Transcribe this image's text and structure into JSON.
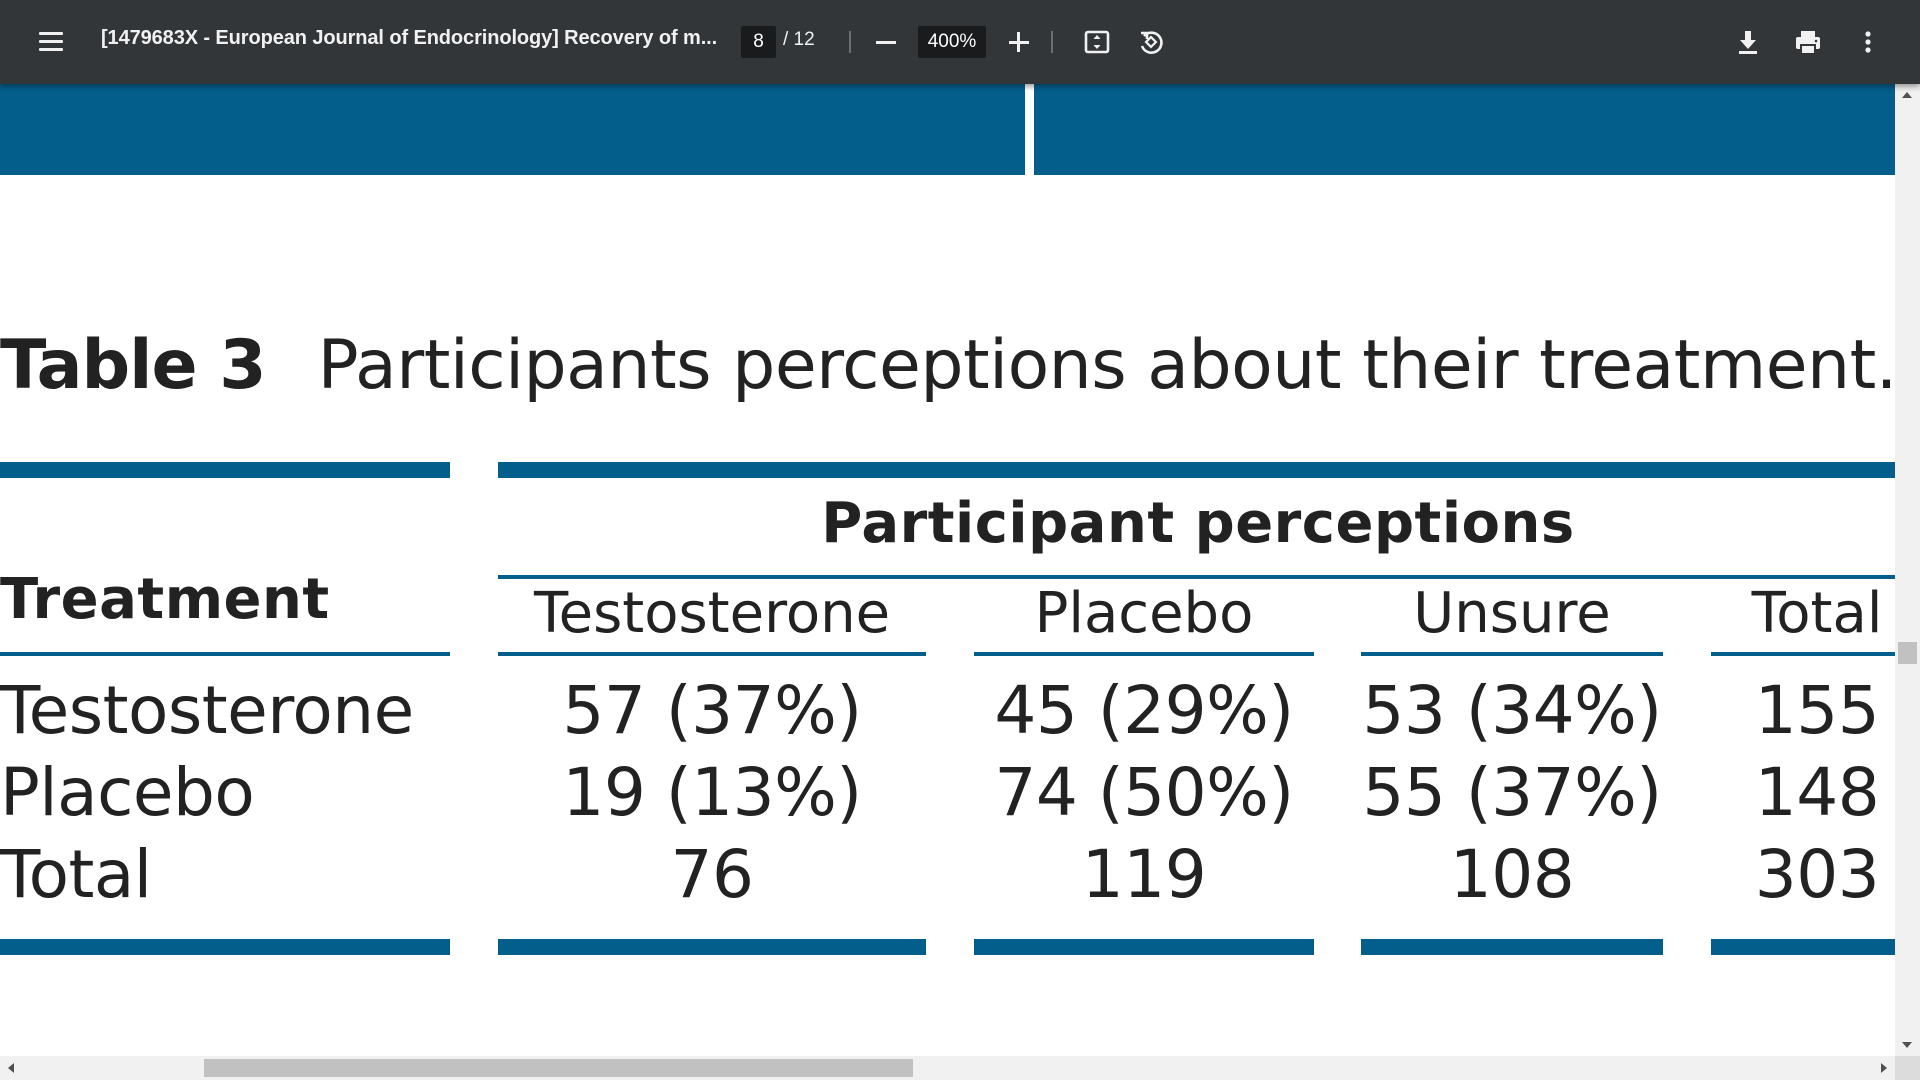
{
  "toolbar": {
    "title": "[1479683X - European Journal of Endocrinology] Recovery of m...",
    "page_current": "8",
    "page_total": "/ 12",
    "zoom_value": "400%",
    "icons": {
      "menu": "menu-icon",
      "zoom_out": "minus-icon",
      "zoom_in": "plus-icon",
      "fit": "fit-page-icon",
      "rotate": "rotate-icon",
      "download": "download-icon",
      "print": "print-icon",
      "more": "more-vert-icon"
    }
  },
  "document": {
    "table_label": "Table 3",
    "table_caption": "Participants perceptions about their treatment.",
    "group_header": "Participant perceptions",
    "row_header": "Treatment",
    "columns": [
      "Testosterone",
      "Placebo",
      "Unsure",
      "Total"
    ],
    "rows": [
      {
        "label": "Testosterone",
        "cells": [
          "57 (37%)",
          "45 (29%)",
          "53 (34%)",
          "155"
        ]
      },
      {
        "label": "Placebo",
        "cells": [
          "19 (13%)",
          "74 (50%)",
          "55 (37%)",
          "148"
        ]
      },
      {
        "label": "Total",
        "cells": [
          "76",
          "119",
          "108",
          "303"
        ]
      }
    ],
    "accent_color": "#035e8c"
  }
}
